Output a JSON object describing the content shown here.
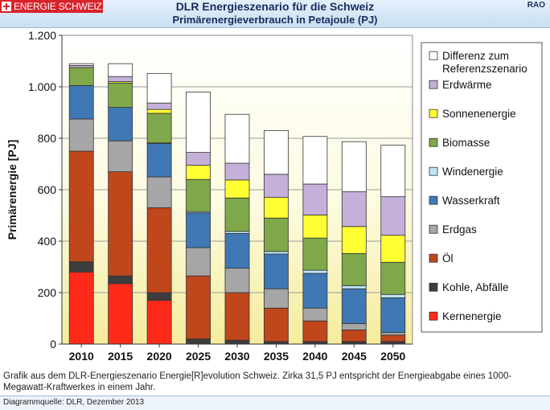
{
  "header": {
    "brand": "ENERGIE SCHWEIZ",
    "title": "DLR Energieszenario für die Schweiz",
    "subtitle": "Primärenergieverbrauch in Petajoule (PJ)",
    "logo_text": "RAO"
  },
  "caption": "Grafik aus dem DLR-Energieszenario Energie[R]evolution Schweiz. Zirka 31,5 PJ entspricht der Energieabgabe eines 1000-Megawatt-Kraftwerkes in einem Jahr.",
  "source": "Diagrammquelle: DLR, Dezember 2013",
  "chart_data": {
    "type": "bar",
    "stacked": true,
    "ylabel": "Primärenergie [PJ]",
    "ylim": [
      0,
      1200
    ],
    "yticks": [
      0,
      200,
      400,
      600,
      800,
      1000,
      1200
    ],
    "ytick_labels": [
      "0",
      "200",
      "400",
      "600",
      "800",
      "1.000",
      "1.200"
    ],
    "categories": [
      "2010",
      "2015",
      "2020",
      "2025",
      "2030",
      "2035",
      "2040",
      "2045",
      "2050"
    ],
    "grid": true,
    "legend_position": "right",
    "series": [
      {
        "name": "Kernenergie",
        "color": "#ff2a1a",
        "values": [
          280,
          235,
          170,
          0,
          0,
          0,
          0,
          0,
          0
        ]
      },
      {
        "name": "Kohle, Abfälle",
        "color": "#3d3d3d",
        "values": [
          40,
          30,
          30,
          20,
          15,
          10,
          10,
          10,
          10
        ]
      },
      {
        "name": "Öl",
        "color": "#c0461c",
        "values": [
          430,
          405,
          330,
          245,
          185,
          130,
          80,
          45,
          25
        ]
      },
      {
        "name": "Erdgas",
        "color": "#a6a6a6",
        "values": [
          125,
          120,
          120,
          110,
          95,
          75,
          50,
          25,
          10
        ]
      },
      {
        "name": "Wasserkraft",
        "color": "#3f78b4",
        "values": [
          130,
          130,
          130,
          135,
          135,
          135,
          135,
          135,
          135
        ]
      },
      {
        "name": "Windenergie",
        "color": "#bfe6f7",
        "values": [
          0,
          0,
          2,
          5,
          8,
          10,
          12,
          12,
          13
        ]
      },
      {
        "name": "Biomasse",
        "color": "#7fa84a",
        "values": [
          70,
          95,
          115,
          125,
          130,
          130,
          125,
          125,
          125
        ]
      },
      {
        "name": "Sonnenenergie",
        "color": "#ffff33",
        "values": [
          0,
          5,
          15,
          55,
          70,
          80,
          90,
          105,
          105
        ]
      },
      {
        "name": "Erdwärme",
        "color": "#c4b0d8",
        "values": [
          8,
          20,
          25,
          50,
          65,
          90,
          120,
          135,
          150
        ]
      },
      {
        "name": "Differenz zum Referenzszenario",
        "color": "#ffffff",
        "values": [
          7,
          50,
          115,
          235,
          190,
          170,
          185,
          195,
          200
        ]
      }
    ]
  }
}
